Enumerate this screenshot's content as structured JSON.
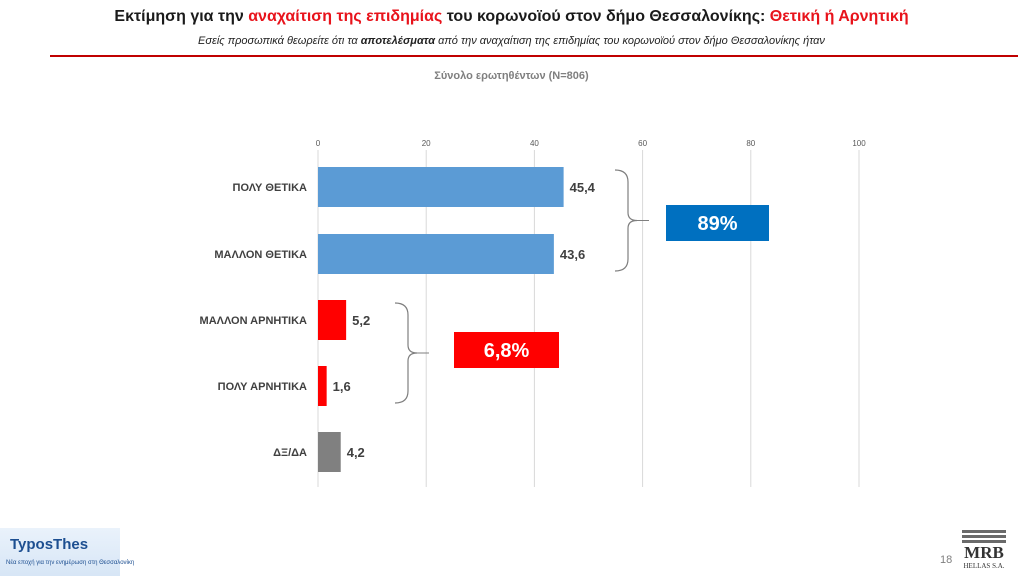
{
  "header": {
    "title_part1": "Εκτίμηση για  την ",
    "title_red1": "αναχαίτιση της επιδημίας",
    "title_part2": " του κορωνοϊού στον δήμο Θεσσαλονίκης: ",
    "title_red2": "Θετική ή Αρνητική",
    "subtitle_part1": "Εσείς προσωπικά θεωρείτε ότι τα ",
    "subtitle_bold": "αποτελέσματα",
    "subtitle_part2": " από την αναχαίτιση της επιδημίας του κορωνοϊού στον δήμο Θεσσαλονίκης ήταν",
    "base": "Σύνολο ερωτηθέντων (N=806)"
  },
  "chart_data": {
    "type": "bar",
    "orientation": "horizontal",
    "categories": [
      "ΠΟΛΥ ΘΕΤΙΚΑ",
      "ΜΑΛΛΟΝ ΘΕΤΙΚΑ",
      "ΜΑΛΛΟΝ ΑΡΝΗΤΙΚΑ",
      "ΠΟΛΥ ΑΡΝΗΤΙΚΑ",
      "ΔΞ/ΔΑ"
    ],
    "values": [
      45.4,
      43.6,
      5.2,
      1.6,
      4.2
    ],
    "value_labels": [
      "45,4",
      "43,6",
      "5,2",
      "1,6",
      "4,2"
    ],
    "bar_colors": [
      "#5b9bd5",
      "#5b9bd5",
      "#ff0000",
      "#ff0000",
      "#808080"
    ],
    "xlim": [
      0,
      100
    ],
    "ticks": [
      0,
      20,
      40,
      60,
      80,
      100
    ],
    "tick_labels": [
      "0",
      "20",
      "40",
      "60",
      "80",
      "100"
    ],
    "grid": true,
    "summaries": [
      {
        "label": "89%",
        "color": "#0070c0",
        "groups": [
          0,
          1
        ]
      },
      {
        "label": "6,8%",
        "color": "#ff0000",
        "groups": [
          2,
          3
        ]
      }
    ]
  },
  "footer": {
    "logo_main": "TyposThes",
    "logo_tagline": "Νέα εποχή για την ενημέρωση στη Θεσσαλονίκη",
    "page_number": "18",
    "mrb_name": "MRB",
    "mrb_sub": "HELLAS S.A."
  }
}
